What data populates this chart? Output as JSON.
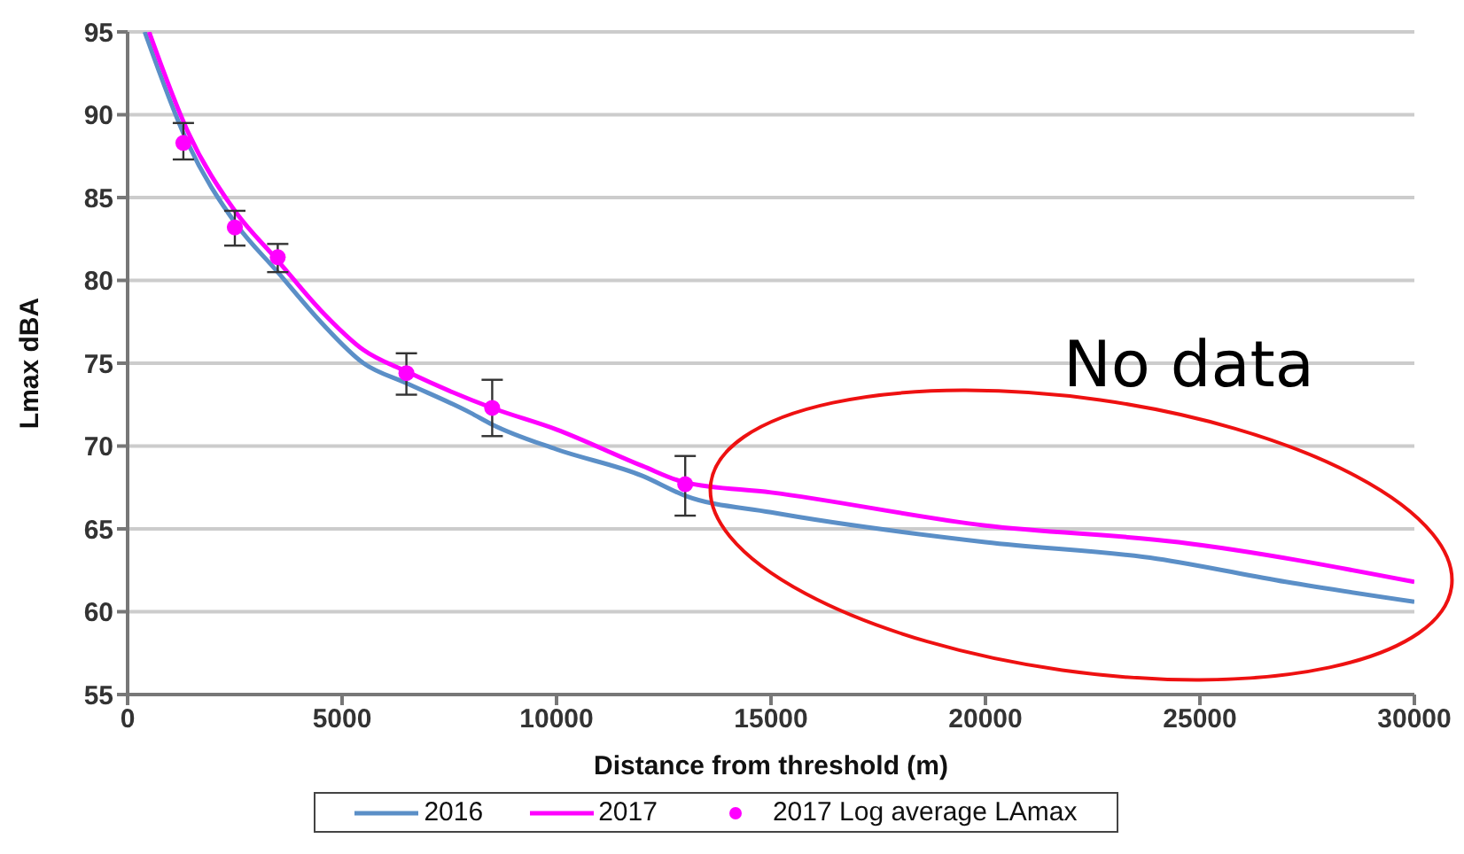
{
  "chart_data": {
    "type": "line",
    "xlabel": "Distance from threshold (m)",
    "ylabel": "Lmax  dBA",
    "annotations": [
      "No data"
    ],
    "xlim": [
      0,
      30000
    ],
    "xticks": [
      0,
      5000,
      10000,
      15000,
      20000,
      25000,
      30000
    ],
    "ylim": [
      55,
      95
    ],
    "yticks": [
      55,
      60,
      65,
      70,
      75,
      80,
      85,
      90,
      95
    ],
    "grid": "y",
    "legend": "bottom",
    "line_style": "solid",
    "marker": "none",
    "series": [
      {
        "name": "2016",
        "color": "#5b8fc7",
        "x": [
          400,
          1400,
          2500,
          3500,
          4500,
          5500,
          6500,
          8000,
          8500,
          10000,
          12000,
          13000,
          15000,
          20000,
          24000,
          27000,
          30000
        ],
        "values": [
          95,
          88.3,
          83.5,
          80.5,
          77.5,
          75,
          73.8,
          72,
          71.3,
          69.8,
          68.2,
          67,
          66,
          64.2,
          63.2,
          61.8,
          60.6
        ]
      },
      {
        "name": "2017",
        "color": "#ff00ff",
        "x": [
          500,
          1400,
          2500,
          3500,
          4500,
          5500,
          6500,
          8500,
          10000,
          12000,
          13000,
          15000,
          20000,
          24500,
          30000
        ],
        "values": [
          95,
          89,
          84.2,
          81.2,
          78.2,
          75.8,
          74.5,
          72.3,
          71,
          68.8,
          67.8,
          67.2,
          65.2,
          64.2,
          61.8
        ]
      },
      {
        "name": "2017 Log average LAmax",
        "type": "scatter",
        "marker": "circle",
        "color": "#ff00ff",
        "x": [
          1300,
          2500,
          3500,
          6500,
          8500,
          13000
        ],
        "values": [
          88.3,
          83.2,
          81.4,
          74.4,
          72.3,
          67.7
        ],
        "errors": [
          [
            87.3,
            89.5
          ],
          [
            82.1,
            84.2
          ],
          [
            80.5,
            82.2
          ],
          [
            73.1,
            75.6
          ],
          [
            70.6,
            74
          ],
          [
            65.8,
            69.4
          ]
        ]
      }
    ]
  }
}
